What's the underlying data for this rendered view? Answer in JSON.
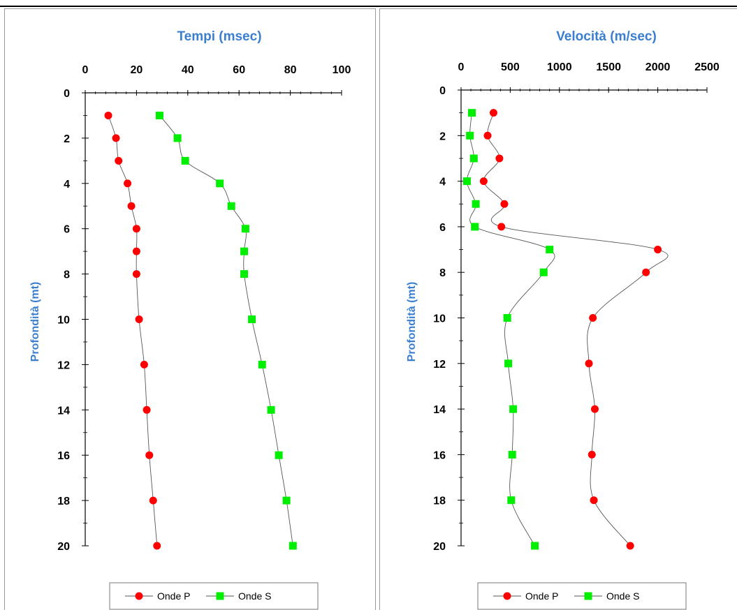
{
  "chart_data": [
    {
      "type": "line",
      "title": "Tempi (msec)",
      "xlabel": "",
      "ylabel": "Profondità (mt)",
      "xlim": [
        0,
        100
      ],
      "ylim": [
        0,
        20
      ],
      "x_ticks": [
        0,
        20,
        40,
        60,
        80,
        100
      ],
      "y_ticks": [
        0,
        2,
        4,
        6,
        8,
        10,
        12,
        14,
        16,
        18,
        20
      ],
      "legend_position": "bottom",
      "series": [
        {
          "name": "Onde P",
          "color": "#ff0000",
          "marker": "circle",
          "x": [
            9,
            12,
            13,
            16.5,
            18,
            20,
            20,
            20,
            21,
            23,
            24,
            25,
            26.5,
            28
          ],
          "y": [
            1,
            2,
            3,
            4,
            5,
            6,
            7,
            8,
            10,
            12,
            14,
            16,
            18,
            20
          ]
        },
        {
          "name": "Onde S",
          "color": "#00ee00",
          "marker": "square",
          "x": [
            29,
            36,
            39,
            52.5,
            57,
            62.5,
            62,
            62,
            65,
            69,
            72.5,
            75.5,
            78.5,
            81
          ],
          "y": [
            1,
            2,
            3,
            4,
            5,
            6,
            7,
            8,
            10,
            12,
            14,
            16,
            18,
            20
          ]
        }
      ]
    },
    {
      "type": "line",
      "title": "Velocità (m/sec)",
      "xlabel": "",
      "ylabel": "Profondità (mt)",
      "xlim": [
        0,
        2500
      ],
      "ylim": [
        0,
        20
      ],
      "x_ticks": [
        0,
        500,
        1000,
        1500,
        2000,
        2500
      ],
      "y_ticks": [
        0,
        2,
        4,
        6,
        8,
        10,
        12,
        14,
        16,
        18,
        20
      ],
      "legend_position": "bottom",
      "series": [
        {
          "name": "Onde P",
          "color": "#ff0000",
          "marker": "circle",
          "x": [
            330,
            270,
            390,
            230,
            440,
            410,
            2000,
            1880,
            1340,
            1300,
            1360,
            1330,
            1350,
            1720
          ],
          "y": [
            1,
            2,
            3,
            4,
            5,
            6,
            7,
            8,
            10,
            12,
            14,
            16,
            18,
            20
          ]
        },
        {
          "name": "Onde S",
          "color": "#00ee00",
          "marker": "square",
          "x": [
            110,
            90,
            130,
            60,
            150,
            140,
            900,
            840,
            470,
            480,
            530,
            520,
            510,
            750
          ],
          "y": [
            1,
            2,
            3,
            4,
            5,
            6,
            7,
            8,
            10,
            12,
            14,
            16,
            18,
            20
          ]
        }
      ]
    }
  ]
}
